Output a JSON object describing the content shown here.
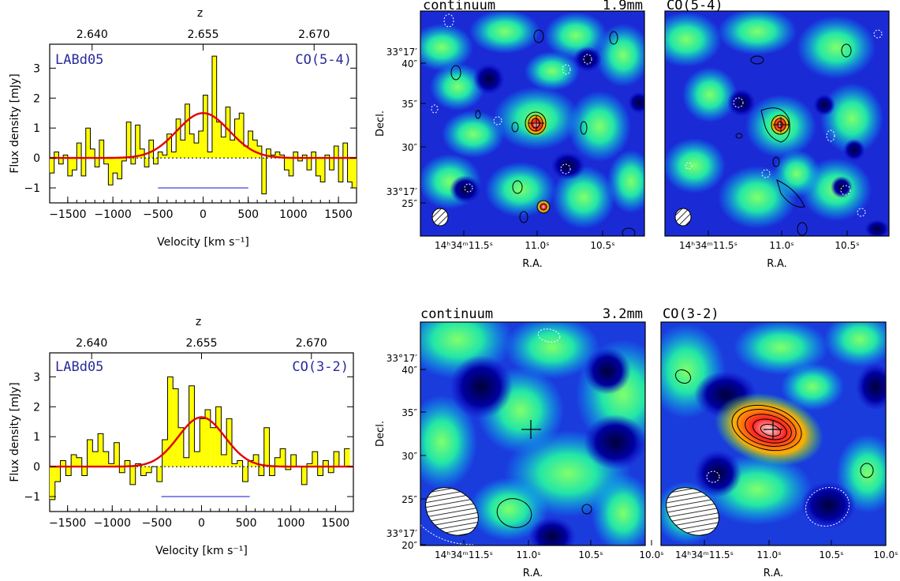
{
  "figure": {
    "top": {
      "spectrum_label": "LABd05",
      "line_label": "CO(5-4)",
      "map_titles": {
        "continuum": "continuum",
        "band": "1.9mm",
        "line": "CO(5-4)"
      }
    },
    "bottom": {
      "spectrum_label": "LABd05",
      "line_label": "CO(3-2)",
      "map_titles": {
        "continuum": "continuum",
        "band": "3.2mm",
        "line": "CO(3-2)"
      }
    }
  },
  "colors": {
    "spectrum_fill": "#ffff00",
    "gauss_fit": "#e00000",
    "label_blue": "#2a2a9a",
    "velocity_bar": "#5050e0",
    "map_low": "#00007a",
    "map_mid": "#00d9ff",
    "map_high": "#ff0000"
  },
  "chart_data": [
    {
      "type": "line",
      "title": "",
      "xlabel": "Velocity [km s⁻¹]",
      "ylabel": "Flux density [mJy]",
      "top_axis_label": "z",
      "xlim": [
        -1700,
        1700
      ],
      "ylim": [
        -1.5,
        3.8
      ],
      "x_ticks": [
        "-1500",
        "-1000",
        "-500",
        "0",
        "500",
        "1000",
        "1500"
      ],
      "y_ticks": [
        "-1",
        "0",
        "1",
        "2",
        "3"
      ],
      "z_ticks": [
        "2.640",
        "2.655",
        "2.670"
      ],
      "z_tick_velocities": [
        -1230,
        0,
        1230
      ],
      "bin_width": 50,
      "x_start": -1700,
      "values": [
        -0.5,
        0.2,
        -0.2,
        0.1,
        -0.6,
        -0.4,
        0.5,
        -0.6,
        1.0,
        0.3,
        -0.3,
        0.6,
        -0.2,
        -0.9,
        -0.5,
        -0.7,
        -0.1,
        1.2,
        -0.2,
        1.1,
        0.3,
        -0.3,
        0.6,
        -0.2,
        0.2,
        0.1,
        0.8,
        0.2,
        1.3,
        0.6,
        1.8,
        0.8,
        0.5,
        0.9,
        2.1,
        0.2,
        3.4,
        1.2,
        0.7,
        1.7,
        0.6,
        1.3,
        1.5,
        0.4,
        0.9,
        0.6,
        0.4,
        -1.2,
        0.3,
        0.1,
        0.2,
        0.1,
        -0.4,
        -0.6,
        0.2,
        -0.1,
        0.1,
        -0.4,
        0.2,
        -0.6,
        -0.8,
        0.1,
        -0.4,
        0.4,
        -0.8,
        0.5,
        -0.8,
        -1.0
      ],
      "fit": {
        "amplitude": 1.5,
        "center": 0,
        "sigma": 290
      },
      "velocity_range": [
        -500,
        500
      ],
      "velocity_range_y": -1.0
    },
    {
      "type": "line",
      "title": "",
      "xlabel": "Velocity [km s⁻¹]",
      "ylabel": "Flux density [mJy]",
      "top_axis_label": "z",
      "xlim": [
        -1700,
        1700
      ],
      "ylim": [
        -1.5,
        3.8
      ],
      "x_ticks": [
        "-1500",
        "-1000",
        "-500",
        "0",
        "500",
        "1000",
        "1500"
      ],
      "y_ticks": [
        "-1",
        "0",
        "1",
        "2",
        "3"
      ],
      "z_ticks": [
        "2.640",
        "2.655",
        "2.670"
      ],
      "z_tick_velocities": [
        -1230,
        0,
        1230
      ],
      "bin_width": 60,
      "x_start": -1700,
      "values": [
        -1.1,
        -0.5,
        0.2,
        -0.3,
        0.4,
        0.3,
        -0.3,
        0.9,
        0.5,
        1.1,
        0.5,
        0.1,
        0.8,
        -0.2,
        0.2,
        -0.6,
        0.1,
        -0.3,
        -0.2,
        0.0,
        -0.5,
        0.9,
        3.0,
        2.6,
        1.3,
        0.3,
        2.7,
        0.5,
        1.6,
        1.9,
        1.3,
        2.0,
        0.4,
        1.6,
        0.1,
        0.2,
        -0.5,
        0.2,
        0.4,
        -0.3,
        1.3,
        -0.3,
        0.3,
        0.6,
        -0.1,
        0.4,
        0.0,
        -0.6,
        0.1,
        0.5,
        -0.3,
        0.2,
        -0.2,
        0.5,
        0.0,
        0.6
      ],
      "fit": {
        "amplitude": 1.65,
        "center": 0,
        "sigma": 260
      },
      "velocity_range": [
        -450,
        540
      ],
      "velocity_range_y": -1.0
    }
  ],
  "maps": {
    "xlabel": "R.A.",
    "ylabel": "Decl.",
    "top_ra_ticks": [
      "14ʰ34ᵐ11.5ˢ",
      "11.0ˢ",
      "10.5ˢ"
    ],
    "top_dec_ticks": [
      "33°17′ 40″",
      "35″",
      "30″",
      "33°17′ 25″"
    ],
    "bottom_ra_ticks": [
      "14ʰ34ᵐ11.5ˢ",
      "11.0ˢ",
      "10.5ˢ",
      "10.0ˢ"
    ],
    "bottom_dec_ticks": [
      "33°17′ 40″",
      "35″",
      "30″",
      "25″",
      "33°17′ 20″"
    ]
  }
}
